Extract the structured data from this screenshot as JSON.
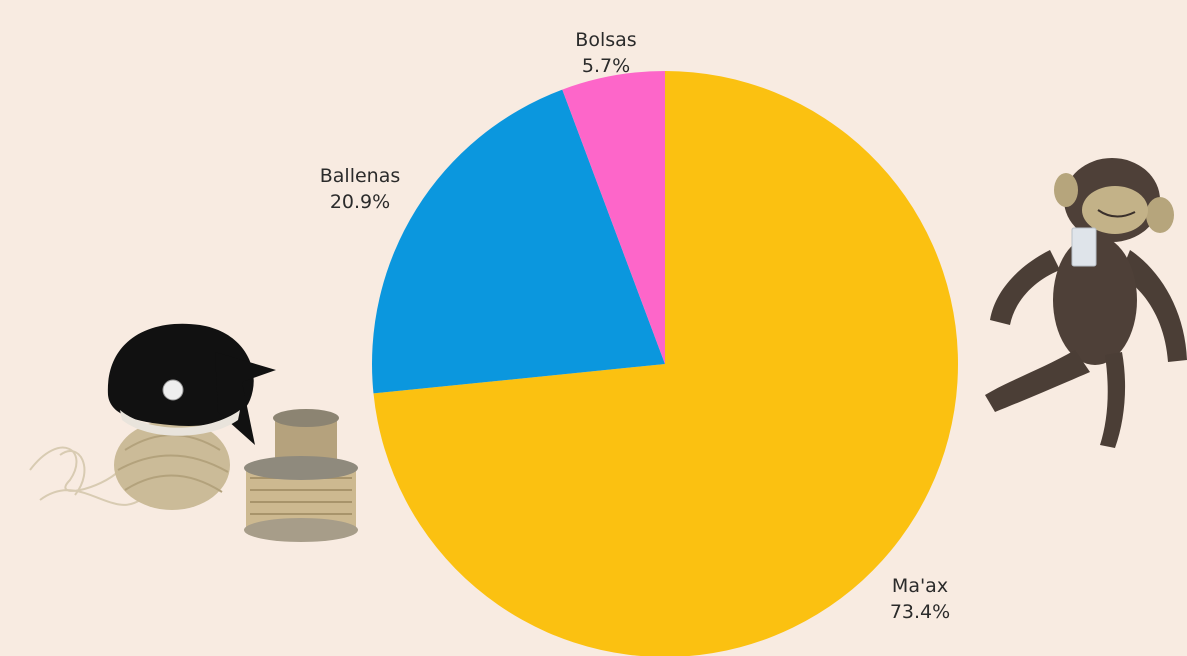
{
  "colors": {
    "background": "#f8ebe1"
  },
  "chart_data": {
    "type": "pie",
    "title": "",
    "slices": [
      {
        "label": "Ma'ax",
        "value": 73.4,
        "display": "73.4%",
        "color": "#fbc111"
      },
      {
        "label": "Ballenas",
        "value": 20.9,
        "display": "20.9%",
        "color": "#0b97de"
      },
      {
        "label": "Bolsas",
        "value": 5.7,
        "display": "5.7%",
        "color": "#fd66c9"
      }
    ]
  },
  "decorations": [
    {
      "name": "whale-plush-with-twine-image"
    },
    {
      "name": "monkey-plush-image"
    }
  ]
}
